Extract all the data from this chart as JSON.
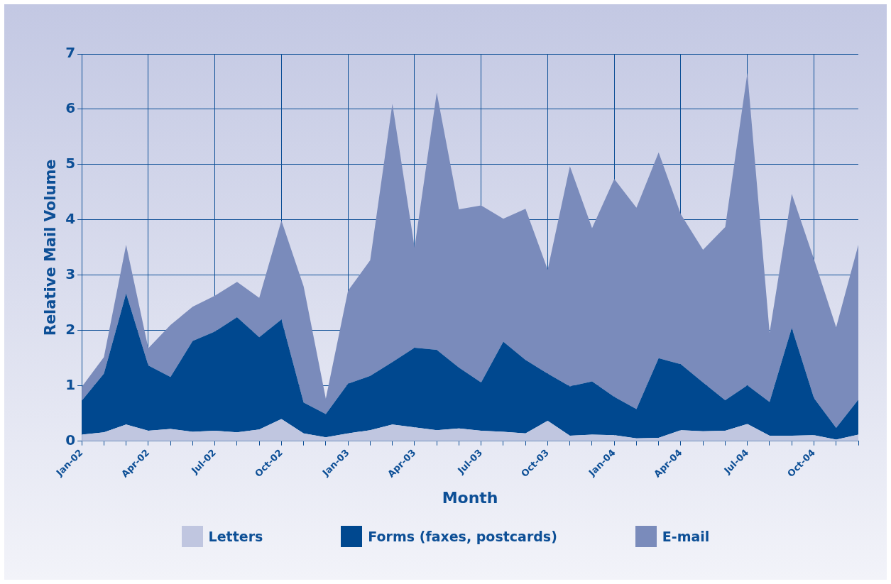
{
  "chart_data": {
    "type": "area",
    "stacked": true,
    "xlabel": "Month",
    "ylabel": "Relative Mail Volume",
    "categories": [
      "Jan-02",
      null,
      null,
      "Apr-02",
      null,
      null,
      "Jul-02",
      null,
      null,
      "Oct-02",
      null,
      null,
      "Jan-03",
      null,
      null,
      "Apr-03",
      null,
      null,
      "Jul-03",
      null,
      null,
      "Oct-03",
      null,
      null,
      "Jan-04",
      null,
      null,
      "Apr-04",
      null,
      null,
      "Jul-04",
      null,
      null,
      "Oct-04",
      null,
      null
    ],
    "series": [
      {
        "name": "Letters",
        "color": "#c0c6e0",
        "values": [
          0.12,
          0.16,
          0.3,
          0.19,
          0.22,
          0.17,
          0.19,
          0.16,
          0.21,
          0.4,
          0.14,
          0.07,
          0.14,
          0.2,
          0.3,
          0.25,
          0.2,
          0.23,
          0.19,
          0.17,
          0.14,
          0.37,
          0.1,
          0.12,
          0.11,
          0.05,
          0.06,
          0.2,
          0.18,
          0.19,
          0.31,
          0.1,
          0.1,
          0.11,
          0.03,
          0.12
        ]
      },
      {
        "name": "Forms (faxes, postcards)",
        "color": "#00488f",
        "values": [
          0.61,
          1.06,
          2.37,
          1.18,
          0.94,
          1.64,
          1.79,
          2.08,
          1.67,
          1.8,
          0.56,
          0.42,
          0.9,
          0.98,
          1.13,
          1.44,
          1.45,
          1.1,
          0.87,
          1.63,
          1.33,
          0.85,
          0.89,
          0.96,
          0.69,
          0.53,
          1.44,
          1.19,
          0.88,
          0.55,
          0.7,
          0.61,
          1.95,
          0.67,
          0.21,
          0.63
        ]
      },
      {
        "name": "E-mail",
        "color": "#7a8bbb",
        "values": [
          0.25,
          0.3,
          0.88,
          0.31,
          0.94,
          0.62,
          0.65,
          0.64,
          0.71,
          1.79,
          2.1,
          0.28,
          1.68,
          2.09,
          4.67,
          1.81,
          4.65,
          2.86,
          3.2,
          2.22,
          2.73,
          1.88,
          3.98,
          2.77,
          3.94,
          3.64,
          3.72,
          2.71,
          2.4,
          3.13,
          5.65,
          1.25,
          2.42,
          2.51,
          1.82,
          2.8
        ]
      }
    ],
    "ylim": [
      0,
      7
    ],
    "yticks": [
      0,
      1,
      2,
      3,
      4,
      5,
      6,
      7
    ],
    "grid": true,
    "legend": "bottom"
  }
}
